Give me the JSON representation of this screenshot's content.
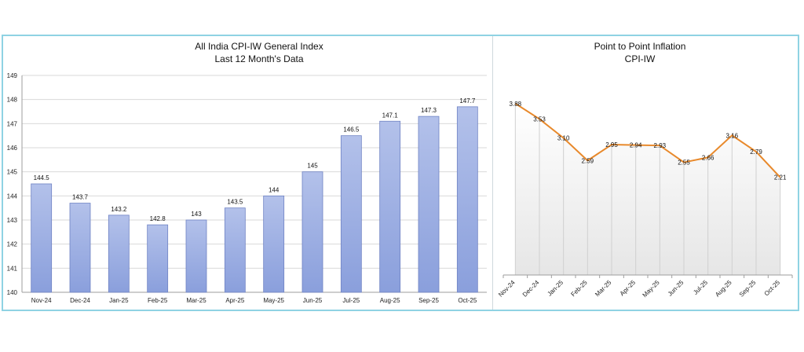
{
  "left_panel": {
    "title": "All India CPI-IW General Index",
    "subtitle": "Last 12 Month's Data"
  },
  "right_panel": {
    "title": "Point to Point Inflation",
    "subtitle": "CPI-IW"
  },
  "colors": {
    "bar_top": "#b3c1ea",
    "bar_bottom": "#8a9fdc",
    "bar_border": "#6f83c4",
    "line": "#e8892b",
    "frame": "#8fd3e3"
  },
  "chart_data": [
    {
      "type": "bar",
      "title": "All India CPI-IW General Index",
      "subtitle": "Last 12 Month's Data",
      "categories": [
        "Nov-24",
        "Dec-24",
        "Jan-25",
        "Feb-25",
        "Mar-25",
        "Apr-25",
        "May-25",
        "Jun-25",
        "Jul-25",
        "Aug-25",
        "Sep-25",
        "Oct-25"
      ],
      "values": [
        144.5,
        143.7,
        143.2,
        142.8,
        143,
        143.5,
        144,
        145,
        146.5,
        147.1,
        147.3,
        147.7
      ],
      "value_labels": [
        "144.5",
        "143.7",
        "143.2",
        "142.8",
        "143",
        "143.5",
        "144",
        "145",
        "146.5",
        "147.1",
        "147.3",
        "147.7"
      ],
      "ylim": [
        140,
        149
      ],
      "yticks": [
        "140",
        "141",
        "142",
        "143",
        "144",
        "145",
        "146",
        "147",
        "148",
        "149"
      ],
      "grid": true,
      "legend": "none"
    },
    {
      "type": "line",
      "title": "Point to Point Inflation",
      "subtitle": "CPI-IW",
      "categories": [
        "Nov-24",
        "Dec-24",
        "Jan-25",
        "Feb-25",
        "Mar-25",
        "Apr-25",
        "May-25",
        "Jun-25",
        "Jul-25",
        "Aug-25",
        "Sep-25",
        "Oct-25"
      ],
      "values": [
        3.88,
        3.53,
        3.1,
        2.59,
        2.95,
        2.94,
        2.93,
        2.55,
        2.66,
        3.16,
        2.79,
        2.21
      ],
      "value_labels": [
        "3.88",
        "3.53",
        "3.10",
        "2.59",
        "2.95",
        "2.94",
        "2.93",
        "2.55",
        "2.66",
        "3.16",
        "2.79",
        "2.21"
      ],
      "ylim": [
        0,
        4.8
      ],
      "grid": false,
      "legend": "none"
    }
  ]
}
